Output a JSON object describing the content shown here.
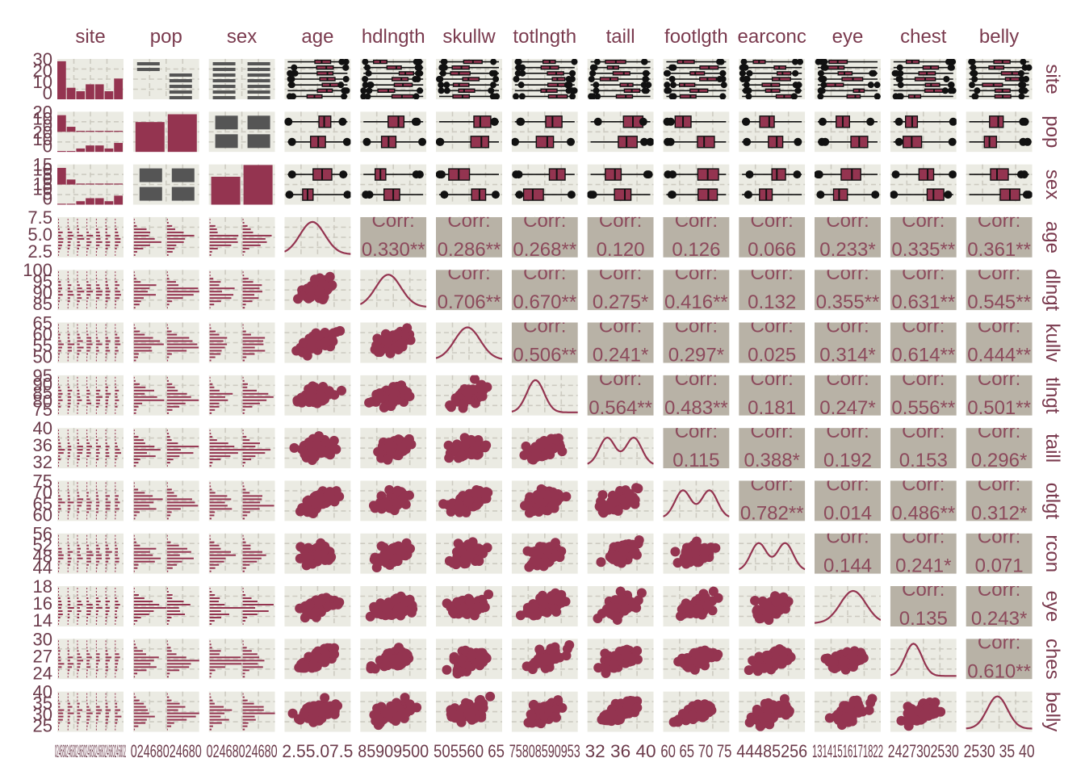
{
  "chart_data": {
    "type": "scatter",
    "title": "",
    "layout": "pairs-matrix",
    "variables": [
      "site",
      "pop",
      "sex",
      "age",
      "hdlngth",
      "skullw",
      "totlngth",
      "taill",
      "footlgth",
      "earconch",
      "eye",
      "chest",
      "belly"
    ],
    "column_labels": [
      "site",
      "pop",
      "sex",
      "age",
      "hdlngth",
      "skullw",
      "totlngth",
      "taill",
      "footlgth",
      "earconc",
      "eye",
      "chest",
      "belly"
    ],
    "row_labels": [
      "site",
      "pop",
      "sex",
      "age",
      "dlngt",
      "kullv",
      "tlngt",
      "taill",
      "otlgt",
      "rcon",
      "eye",
      "ches",
      "belly"
    ],
    "row_tick_labels": [
      [
        "30",
        "20",
        "10",
        "0"
      ],
      [
        "20",
        "10",
        "0",
        "20",
        "10",
        "0"
      ],
      [
        "15",
        "10",
        "5",
        "0",
        "15",
        "10",
        "5",
        "0"
      ],
      [
        "7.5",
        "5.0",
        "2.5"
      ],
      [
        "100",
        "95",
        "90",
        "85"
      ],
      [
        "65",
        "60",
        "55",
        "50"
      ],
      [
        "95",
        "90",
        "85",
        "80",
        "75"
      ],
      [
        "40",
        "36",
        "32"
      ],
      [
        "75",
        "70",
        "65",
        "60"
      ],
      [
        "56",
        "52",
        "48",
        "44"
      ],
      [
        "18",
        "16",
        "14"
      ],
      [
        "30",
        "27",
        "24"
      ],
      [
        "40",
        "35",
        "30",
        "25"
      ]
    ],
    "col_tick_labels": [
      "0246802468024680246802468024680246802",
      "02468024680",
      "02468024680",
      "2.55.07.5",
      "85909500",
      "505560 65",
      "75808590953",
      "32 36 40",
      "60 65 70 75",
      "44485256",
      "13141516171822",
      "2427302530 ",
      "2530 35 40"
    ],
    "correlations": [
      [
        "age",
        "hdlngth",
        "0.330**"
      ],
      [
        "age",
        "skullw",
        "0.286**"
      ],
      [
        "age",
        "totlngth",
        "0.268**"
      ],
      [
        "age",
        "taill",
        "0.120"
      ],
      [
        "age",
        "footlgth",
        "0.126"
      ],
      [
        "age",
        "earconch",
        "0.066"
      ],
      [
        "age",
        "eye",
        "0.233*"
      ],
      [
        "age",
        "chest",
        "0.335**"
      ],
      [
        "age",
        "belly",
        "0.361**"
      ],
      [
        "hdlngth",
        "skullw",
        "0.706**"
      ],
      [
        "hdlngth",
        "totlngth",
        "0.670**"
      ],
      [
        "hdlngth",
        "taill",
        "0.275*"
      ],
      [
        "hdlngth",
        "footlgth",
        "0.416**"
      ],
      [
        "hdlngth",
        "earconch",
        "0.132"
      ],
      [
        "hdlngth",
        "eye",
        "0.355**"
      ],
      [
        "hdlngth",
        "chest",
        "0.631**"
      ],
      [
        "hdlngth",
        "belly",
        "0.545**"
      ],
      [
        "skullw",
        "totlngth",
        "0.506**"
      ],
      [
        "skullw",
        "taill",
        "0.241*"
      ],
      [
        "skullw",
        "footlgth",
        "0.297*"
      ],
      [
        "skullw",
        "earconch",
        "0.025"
      ],
      [
        "skullw",
        "eye",
        "0.314*"
      ],
      [
        "skullw",
        "chest",
        "0.614**"
      ],
      [
        "skullw",
        "belly",
        "0.444**"
      ],
      [
        "totlngth",
        "taill",
        "0.564**"
      ],
      [
        "totlngth",
        "footlgth",
        "0.483**"
      ],
      [
        "totlngth",
        "earconch",
        "0.181"
      ],
      [
        "totlngth",
        "eye",
        "0.247*"
      ],
      [
        "totlngth",
        "chest",
        "0.556**"
      ],
      [
        "totlngth",
        "belly",
        "0.501**"
      ],
      [
        "taill",
        "footlgth",
        "0.115"
      ],
      [
        "taill",
        "earconch",
        "0.388*"
      ],
      [
        "taill",
        "eye",
        "0.192"
      ],
      [
        "taill",
        "chest",
        "0.153"
      ],
      [
        "taill",
        "belly",
        "0.296*"
      ],
      [
        "footlgth",
        "earconch",
        "0.782**"
      ],
      [
        "footlgth",
        "eye",
        "0.014"
      ],
      [
        "footlgth",
        "chest",
        "0.486**"
      ],
      [
        "footlgth",
        "belly",
        "0.312*"
      ],
      [
        "earconch",
        "eye",
        "0.144"
      ],
      [
        "earconch",
        "chest",
        "0.241*"
      ],
      [
        "earconch",
        "belly",
        "0.071"
      ],
      [
        "eye",
        "chest",
        "0.135"
      ],
      [
        "eye",
        "belly",
        "0.243*"
      ],
      [
        "chest",
        "belly",
        "0.610**"
      ]
    ],
    "corr_label": "Corr:",
    "site_counts": [
      33,
      10,
      7,
      13,
      13,
      7,
      18
    ],
    "pop_counts": [
      46,
      58
    ],
    "sex_counts": [
      43,
      61
    ],
    "colors": {
      "accent": "#943450",
      "panel_bg": "#ebebe3",
      "corr_bg": "#b8b2a6",
      "grid": "#cdcbc1",
      "strip_text": "#7a3a4e",
      "tick_text": "#6b3a4a",
      "box_fill": "#555555",
      "outlier": "#111111"
    },
    "grid": true
  }
}
